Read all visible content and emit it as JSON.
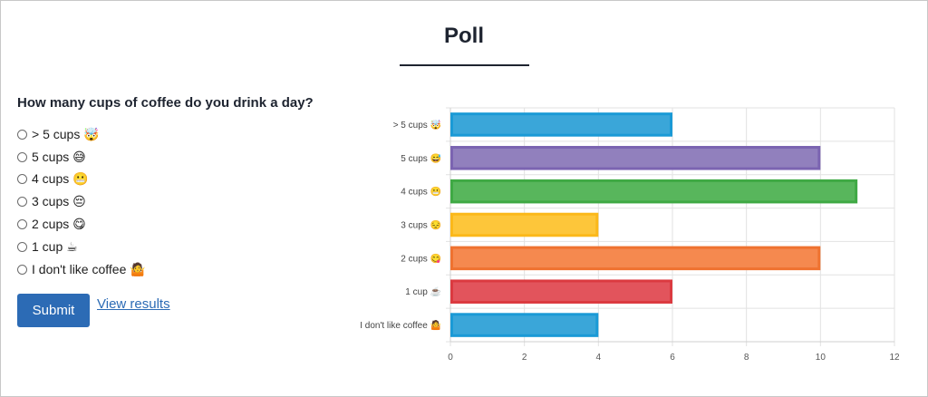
{
  "page": {
    "title": "Poll"
  },
  "poll": {
    "question": "How many cups of coffee do you drink a day?",
    "options": [
      {
        "label": "> 5 cups 🤯"
      },
      {
        "label": "5 cups 😅"
      },
      {
        "label": "4 cups 😬"
      },
      {
        "label": "3 cups 😔"
      },
      {
        "label": "2 cups 😋"
      },
      {
        "label": "1 cup ☕"
      },
      {
        "label": "I don't like coffee 🤷"
      }
    ],
    "submit_label": "Submit",
    "view_results_label": "View results"
  },
  "colors": {
    "accent": "#2c6bb5",
    "title": "#1e2430"
  },
  "chart_data": {
    "type": "bar",
    "orientation": "horizontal",
    "categories": [
      "> 5 cups 🤯",
      "5 cups 😅",
      "4 cups 😬",
      "3 cups 😔",
      "2 cups 😋",
      "1 cup ☕",
      "I don't like coffee 🤷"
    ],
    "values": [
      6,
      10,
      11,
      4,
      10,
      6,
      4
    ],
    "colors": [
      {
        "fill": "#3aa6d9",
        "stroke": "#1a9ad6"
      },
      {
        "fill": "#9180bd",
        "stroke": "#7b64b1"
      },
      {
        "fill": "#58b65c",
        "stroke": "#3fa944"
      },
      {
        "fill": "#fdc63a",
        "stroke": "#fbb81a"
      },
      {
        "fill": "#f5894f",
        "stroke": "#ef7230"
      },
      {
        "fill": "#e2545c",
        "stroke": "#db3a40"
      },
      {
        "fill": "#3aa6d9",
        "stroke": "#1a9ad6"
      }
    ],
    "xlim": [
      0,
      12
    ],
    "xticks": [
      "0",
      "2",
      "4",
      "6",
      "8",
      "10",
      "12"
    ],
    "grid": true,
    "legend": "none"
  }
}
